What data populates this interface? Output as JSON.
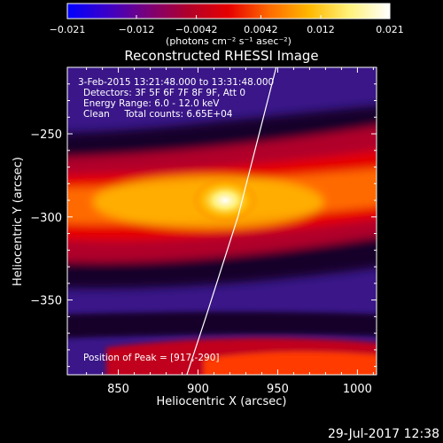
{
  "chart_data": {
    "type": "heatmap",
    "title": "Reconstructed RHESSI Image",
    "xlabel": "Heliocentric X (arcsec)",
    "ylabel": "Heliocentric Y (arcsec)",
    "xlim": [
      818,
      1012
    ],
    "ylim": [
      -395,
      -210
    ],
    "xticks": [
      850,
      900,
      950,
      1000
    ],
    "yticks": [
      -250,
      -300,
      -350
    ],
    "colorbar": {
      "min": -0.021,
      "max": 0.021,
      "ticks": [
        -0.021,
        -0.012,
        -0.0042,
        0.0042,
        0.012,
        0.021
      ],
      "tick_labels": [
        "−0.021",
        "−0.012",
        "−0.0042",
        "0.0042",
        "0.012",
        "0.021"
      ],
      "units_text": "(photons cm⁻² s⁻¹ asec⁻²)",
      "colormap": [
        "#0000ff",
        "#3b00c8",
        "#7a0078",
        "#b0002a",
        "#e60000",
        "#ff6a00",
        "#ffb800",
        "#fff27a",
        "#ffffff"
      ]
    },
    "annotations": [
      "3-Feb-2015 13:21:48.000 to 13:31:48.000",
      "Detectors: 3F 5F 6F 7F 8F 9F, Att 0",
      "Energy Range: 6.0 - 12.0 keV",
      "Clean     Total counts: 6.65E+04",
      "Position of Peak = [917,-290]"
    ],
    "peak": {
      "x": 917,
      "y": -290
    },
    "limb": [
      {
        "x": 893,
        "y": -395
      },
      {
        "x": 905,
        "y": -360
      },
      {
        "x": 915,
        "y": -330
      },
      {
        "x": 925,
        "y": -300
      },
      {
        "x": 933,
        "y": -270
      },
      {
        "x": 941,
        "y": -240
      },
      {
        "x": 949,
        "y": -210
      }
    ],
    "grid": false
  },
  "footer": {
    "timestamp": "29-Jul-2017 12:38"
  }
}
